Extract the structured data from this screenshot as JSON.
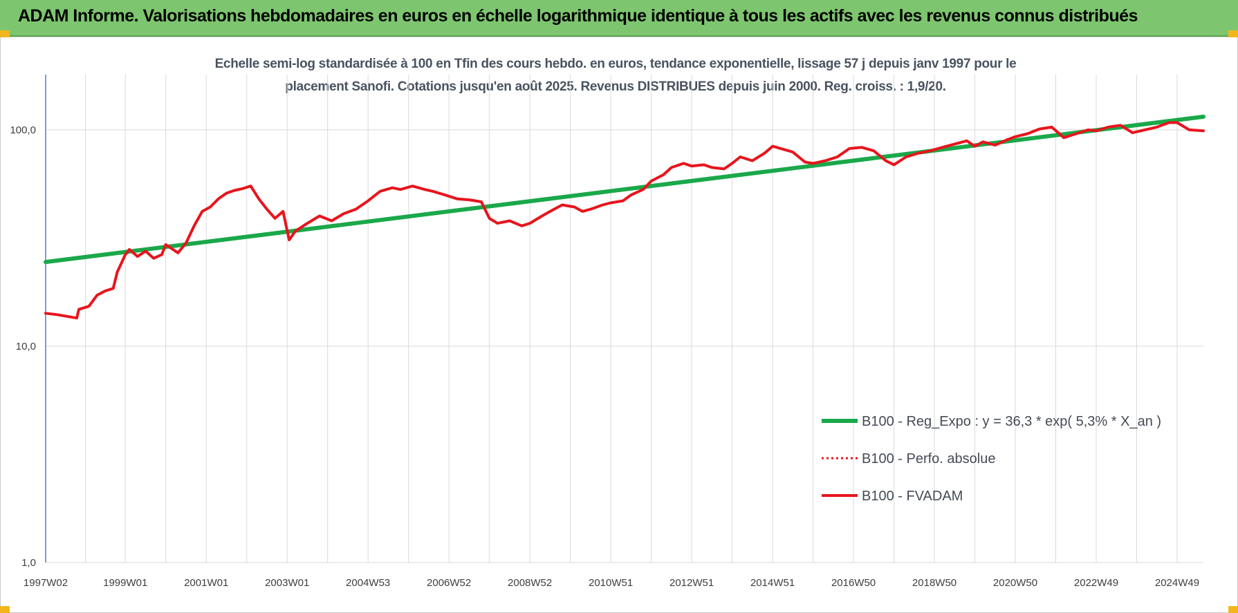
{
  "header": {
    "title": "ADAM Informe. Valorisations hebdomadaires en euros en échelle logarithmique identique à tous les actifs avec les revenus connus distribués"
  },
  "colors": {
    "banner": "#7dc66f",
    "trend": "#1aa84a",
    "fvadam": "#e8141c",
    "perfo": "#e8141c",
    "axis": "#4f7fb8",
    "grid": "#d9d9d9",
    "corner": "#f2b61c"
  },
  "chart_data": {
    "type": "line",
    "title_lines": [
      "Echelle semi-log standardisée à 100 en Tfin des cours hebdo. en euros, tendance exponentielle, lissage 57 j depuis janv 1997 pour le",
      "placement Sanofi. Cotations jusqu'en août 2025. Revenus DISTRIBUES depuis juin 2000. Reg. croiss. : 1,9/20."
    ],
    "y_scale": "log",
    "ylim": [
      1,
      180
    ],
    "y_ticks": [
      {
        "value": 1,
        "label": "1,0"
      },
      {
        "value": 10,
        "label": "10,0"
      },
      {
        "value": 100,
        "label": "100,0"
      }
    ],
    "xlim": [
      1997.03,
      2025.65
    ],
    "x_ticks": [
      {
        "value": 1997.03,
        "label": "1997W02"
      },
      {
        "value": 1999.0,
        "label": "1999W01"
      },
      {
        "value": 2001.0,
        "label": "2001W01"
      },
      {
        "value": 2003.0,
        "label": "2003W01"
      },
      {
        "value": 2005.0,
        "label": "2004W53"
      },
      {
        "value": 2007.0,
        "label": "2006W52"
      },
      {
        "value": 2009.0,
        "label": "2008W52"
      },
      {
        "value": 2011.0,
        "label": "2010W51"
      },
      {
        "value": 2013.0,
        "label": "2012W51"
      },
      {
        "value": 2015.0,
        "label": "2014W51"
      },
      {
        "value": 2017.0,
        "label": "2016W50"
      },
      {
        "value": 2019.0,
        "label": "2018W50"
      },
      {
        "value": 2021.0,
        "label": "2020W50"
      },
      {
        "value": 2023.0,
        "label": "2022W49"
      },
      {
        "value": 2025.0,
        "label": "2024W49"
      }
    ],
    "legend_position": "bottom-right",
    "series": [
      {
        "name": "B100 - Reg_Expo : y = 36,3 * exp( 5,3% *  X_an )",
        "style": "solid-thick",
        "x": [
          1997.03,
          2025.65
        ],
        "y": [
          24.5,
          115
        ]
      },
      {
        "name": "B100 - Perfo. absolue",
        "style": "dotted",
        "x": [],
        "y": []
      },
      {
        "name": "B100 - FVADAM",
        "style": "solid",
        "x": [
          1997.03,
          1997.3,
          1997.6,
          1997.8,
          1997.85,
          1998.1,
          1998.3,
          1998.5,
          1998.7,
          1998.8,
          1999.0,
          1999.1,
          1999.3,
          1999.5,
          1999.7,
          1999.9,
          2000.0,
          2000.3,
          2000.5,
          2000.7,
          2000.9,
          2001.1,
          2001.3,
          2001.5,
          2001.7,
          2001.9,
          2002.1,
          2002.3,
          2002.5,
          2002.7,
          2002.9,
          2003.05,
          2003.2,
          2003.5,
          2003.8,
          2004.1,
          2004.4,
          2004.7,
          2005.0,
          2005.3,
          2005.6,
          2005.8,
          2006.1,
          2006.4,
          2006.6,
          2006.9,
          2007.2,
          2007.5,
          2007.8,
          2008.0,
          2008.2,
          2008.5,
          2008.8,
          2009.0,
          2009.3,
          2009.5,
          2009.8,
          2010.1,
          2010.3,
          2010.5,
          2010.8,
          2011.0,
          2011.3,
          2011.5,
          2011.8,
          2012.0,
          2012.3,
          2012.5,
          2012.8,
          2013.0,
          2013.3,
          2013.5,
          2013.8,
          2014.0,
          2014.2,
          2014.5,
          2014.8,
          2015.0,
          2015.2,
          2015.5,
          2015.8,
          2016.0,
          2016.3,
          2016.6,
          2016.9,
          2017.2,
          2017.5,
          2017.8,
          2018.0,
          2018.3,
          2018.6,
          2018.9,
          2019.2,
          2019.5,
          2019.8,
          2020.0,
          2020.2,
          2020.5,
          2020.8,
          2021.0,
          2021.3,
          2021.6,
          2021.9,
          2022.2,
          2022.5,
          2022.8,
          2023.0,
          2023.3,
          2023.6,
          2023.9,
          2024.2,
          2024.5,
          2024.8,
          2025.0,
          2025.3,
          2025.65
        ],
        "y": [
          14.2,
          14.0,
          13.7,
          13.5,
          14.8,
          15.3,
          17.2,
          18.0,
          18.5,
          22.0,
          26.5,
          28.0,
          26.0,
          27.5,
          25.5,
          26.5,
          29.5,
          27.0,
          30.0,
          36.0,
          42.0,
          44.0,
          48.0,
          51.0,
          52.5,
          53.5,
          55.0,
          48.0,
          43.0,
          39.0,
          42.0,
          31.0,
          34.0,
          37.0,
          40.0,
          38.0,
          41.0,
          43.0,
          47.0,
          52.0,
          54.0,
          53.0,
          55.0,
          53.0,
          52.0,
          50.0,
          48.0,
          47.5,
          46.5,
          39.0,
          37.0,
          38.0,
          36.0,
          37.0,
          40.0,
          42.0,
          45.0,
          44.0,
          42.0,
          43.0,
          45.0,
          46.0,
          47.0,
          50.0,
          53.0,
          58.0,
          62.0,
          67.0,
          70.0,
          68.0,
          69.0,
          67.0,
          66.0,
          70.0,
          75.0,
          72.0,
          78.0,
          84.0,
          82.0,
          79.0,
          71.0,
          70.0,
          72.0,
          75.0,
          82.0,
          83.0,
          80.0,
          72.0,
          69.0,
          75.0,
          78.0,
          80.0,
          83.0,
          86.0,
          89.0,
          84.0,
          88.0,
          85.0,
          90.0,
          93.0,
          96.0,
          101.0,
          103.0,
          92.0,
          96.0,
          100.0,
          99.0,
          103.0,
          105.0,
          97.0,
          100.0,
          103.0,
          108.0,
          108.0,
          100.0,
          99.0
        ]
      }
    ]
  }
}
